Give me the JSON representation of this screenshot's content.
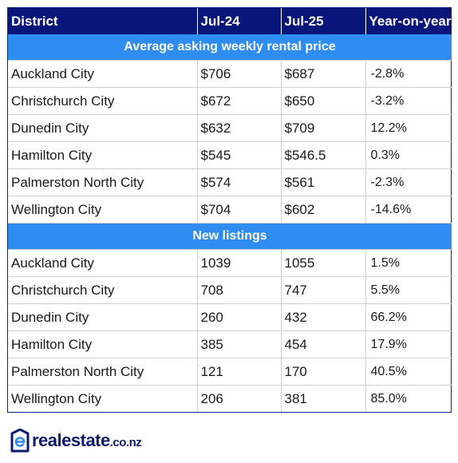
{
  "table": {
    "headers": [
      "District",
      "Jul-24",
      "Jul-25",
      "Year-on-year"
    ],
    "sections": [
      {
        "title": "Average asking weekly rental price",
        "rows": [
          [
            "Auckland City",
            "$706",
            "$687",
            "-2.8%"
          ],
          [
            "Christchurch City",
            "$672",
            "$650",
            "-3.2%"
          ],
          [
            "Dunedin City",
            "$632",
            "$709",
            "12.2%"
          ],
          [
            "Hamilton City",
            "$545",
            "$546.5",
            "0.3%"
          ],
          [
            "Palmerston North City",
            "$574",
            "$561",
            "-2.3%"
          ],
          [
            "Wellington City",
            "$704",
            "$602",
            "-14.6%"
          ]
        ]
      },
      {
        "title": "New listings",
        "rows": [
          [
            "Auckland City",
            "1039",
            "1055",
            "1.5%"
          ],
          [
            "Christchurch City",
            "708",
            "747",
            "5.5%"
          ],
          [
            "Dunedin City",
            "260",
            "432",
            "66.2%"
          ],
          [
            "Hamilton City",
            "385",
            "454",
            "17.9%"
          ],
          [
            "Palmerston North City",
            "121",
            "170",
            "40.5%"
          ],
          [
            "Wellington City",
            "206",
            "381",
            "85.0%"
          ]
        ]
      }
    ]
  },
  "logo": {
    "name": "realestate",
    "tld": ".co.nz",
    "icon": "realestate-e-logo-icon"
  },
  "colors": {
    "header_bg": "#08157a",
    "section_bg": "#2f8cf0",
    "logo_blue": "#0b1a6e",
    "logo_accent": "#2f8cf0"
  }
}
